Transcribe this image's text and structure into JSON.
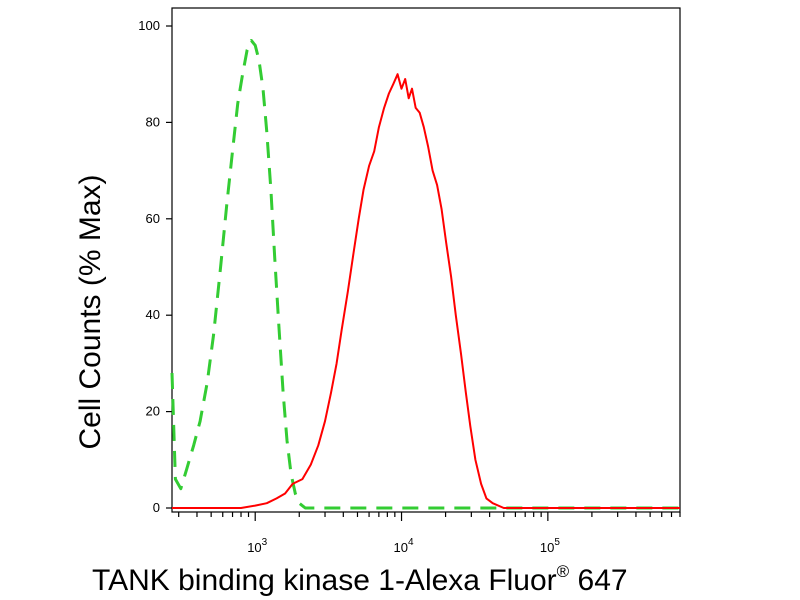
{
  "chart_data": {
    "type": "line",
    "title": "",
    "xlabel": {
      "text": "TANK binding kinase 1-Alexa Fluor",
      "superscript": "®",
      "suffix": " 647"
    },
    "ylabel": "Cell Counts (% Max)",
    "x_scale": "log",
    "xlim": [
      270,
      800000
    ],
    "ylim": [
      0,
      104
    ],
    "grid": false,
    "legend": "none",
    "y_ticks": [
      {
        "value": 0,
        "label": "0"
      },
      {
        "value": 20,
        "label": "20"
      },
      {
        "value": 40,
        "label": "40"
      },
      {
        "value": 60,
        "label": "60"
      },
      {
        "value": 80,
        "label": "80"
      },
      {
        "value": 100,
        "label": "100"
      }
    ],
    "x_ticks": [
      {
        "value": 1000,
        "base": "10",
        "exp": "3"
      },
      {
        "value": 10000,
        "base": "10",
        "exp": "4"
      },
      {
        "value": 100000,
        "base": "10",
        "exp": "5"
      }
    ],
    "series": [
      {
        "color": "#33cc33",
        "style": "dashed",
        "points": [
          [
            270,
            28
          ],
          [
            285,
            6
          ],
          [
            310,
            4
          ],
          [
            340,
            8
          ],
          [
            380,
            13
          ],
          [
            420,
            18
          ],
          [
            470,
            26
          ],
          [
            520,
            36
          ],
          [
            580,
            50
          ],
          [
            640,
            63
          ],
          [
            700,
            74
          ],
          [
            760,
            84
          ],
          [
            820,
            90
          ],
          [
            880,
            95
          ],
          [
            940,
            97
          ],
          [
            1000,
            96
          ],
          [
            1060,
            93
          ],
          [
            1130,
            87
          ],
          [
            1200,
            78
          ],
          [
            1280,
            66
          ],
          [
            1360,
            52
          ],
          [
            1450,
            38
          ],
          [
            1550,
            24
          ],
          [
            1650,
            14
          ],
          [
            1760,
            7
          ],
          [
            1880,
            3
          ],
          [
            2000,
            1
          ],
          [
            2200,
            0
          ],
          [
            800000,
            0
          ]
        ]
      },
      {
        "color": "#ff0000",
        "style": "solid",
        "points": [
          [
            270,
            0
          ],
          [
            800,
            0
          ],
          [
            1000,
            0.5
          ],
          [
            1200,
            1
          ],
          [
            1400,
            2
          ],
          [
            1600,
            3
          ],
          [
            1800,
            5
          ],
          [
            2100,
            6
          ],
          [
            2400,
            9
          ],
          [
            2700,
            13
          ],
          [
            3000,
            18
          ],
          [
            3300,
            24
          ],
          [
            3600,
            30
          ],
          [
            3900,
            37
          ],
          [
            4300,
            45
          ],
          [
            4700,
            53
          ],
          [
            5100,
            60
          ],
          [
            5500,
            66
          ],
          [
            6000,
            71
          ],
          [
            6500,
            74
          ],
          [
            7000,
            79
          ],
          [
            7600,
            83
          ],
          [
            8200,
            86
          ],
          [
            8800,
            88
          ],
          [
            9400,
            90
          ],
          [
            10000,
            87
          ],
          [
            10600,
            89
          ],
          [
            11200,
            85
          ],
          [
            11800,
            87
          ],
          [
            12500,
            83
          ],
          [
            13300,
            82
          ],
          [
            14200,
            79
          ],
          [
            15200,
            75
          ],
          [
            16300,
            70
          ],
          [
            17500,
            67
          ],
          [
            18800,
            62
          ],
          [
            20200,
            55
          ],
          [
            21800,
            48
          ],
          [
            23500,
            40
          ],
          [
            25500,
            32
          ],
          [
            27500,
            24
          ],
          [
            29500,
            17
          ],
          [
            32000,
            10
          ],
          [
            35000,
            5
          ],
          [
            38000,
            2
          ],
          [
            42000,
            1
          ],
          [
            50000,
            0
          ],
          [
            800000,
            0
          ]
        ]
      }
    ]
  }
}
